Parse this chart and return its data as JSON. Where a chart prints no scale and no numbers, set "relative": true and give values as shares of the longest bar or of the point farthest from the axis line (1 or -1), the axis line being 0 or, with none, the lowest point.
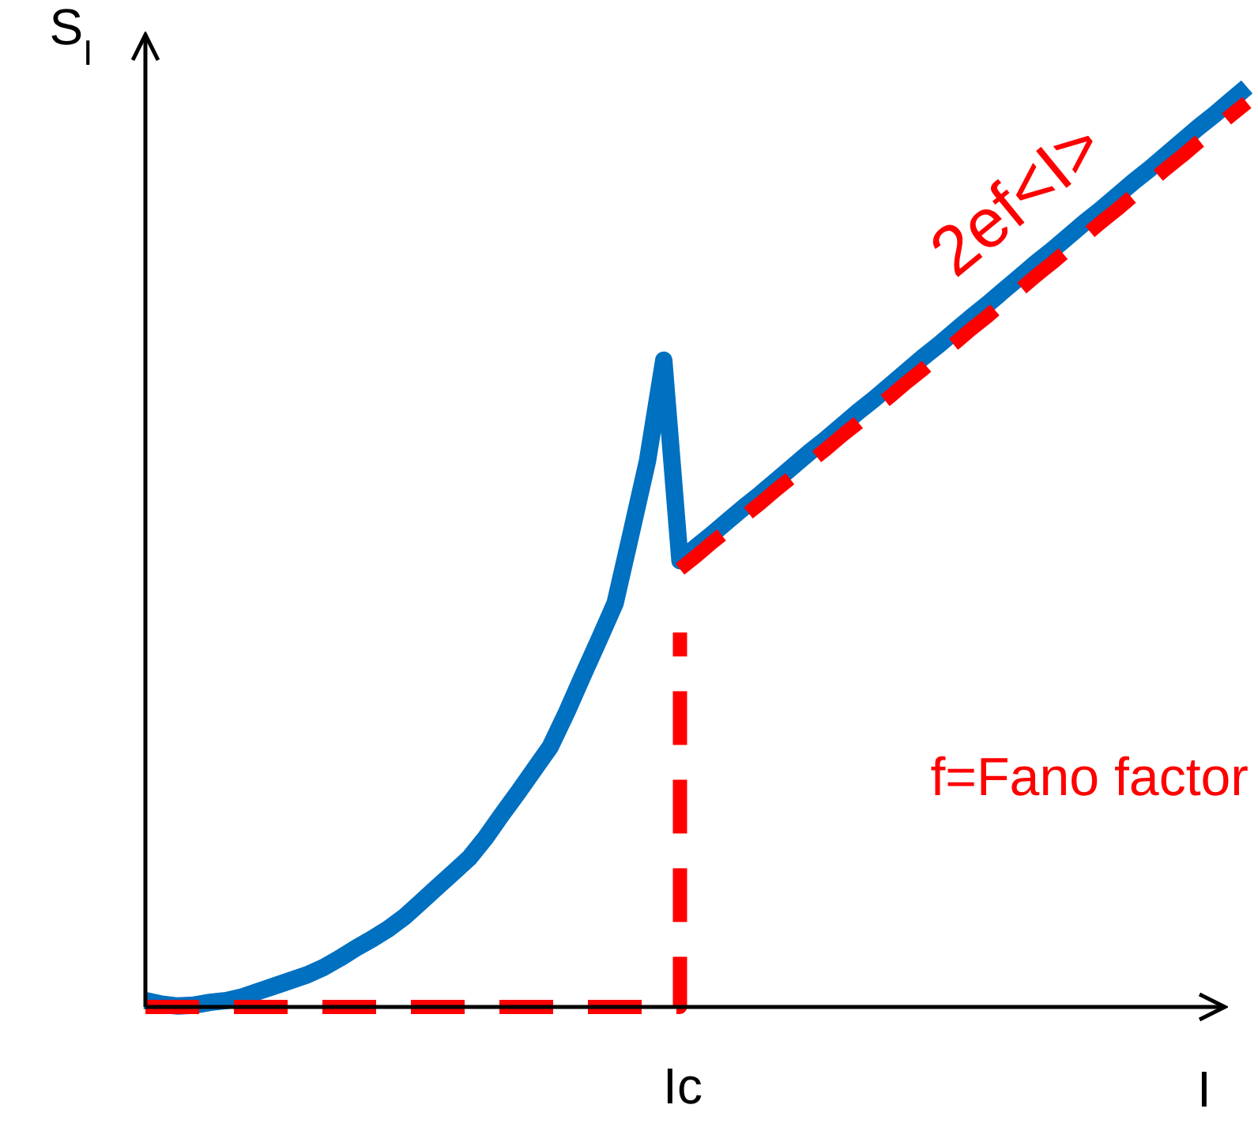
{
  "chart_data": {
    "type": "line",
    "relative": true,
    "xlabel": "I",
    "ylabel": "S$_{I}$",
    "categories": [
      null,
      null,
      null,
      null,
      null,
      null,
      null,
      null,
      null,
      null,
      null,
      null,
      null,
      null,
      null,
      null,
      null,
      null,
      null,
      null,
      null,
      null,
      null,
      null,
      null,
      null,
      null,
      null,
      null,
      null,
      null,
      null,
      null,
      null,
      null,
      null,
      null,
      null,
      null,
      null,
      null,
      null,
      null,
      null,
      null,
      null,
      null,
      null,
      null,
      null,
      null,
      null,
      null,
      null,
      null,
      null,
      null,
      null,
      null,
      null,
      null,
      null,
      null,
      null,
      null,
      null,
      null,
      null,
      null
    ],
    "marker": "none",
    "series": [
      {
        "color": "#0070c0",
        "line_style": "solid",
        "values": [
          0.007,
          0.003,
          0.001,
          0.002,
          0.005,
          0.007,
          0.011,
          0.017,
          0.023,
          0.029,
          0.035,
          0.043,
          0.053,
          0.064,
          0.074,
          0.085,
          0.098,
          0.114,
          0.13,
          0.146,
          0.162,
          0.184,
          0.209,
          0.233,
          0.258,
          0.283,
          0.32,
          0.36,
          0.399,
          0.439,
          0.516,
          0.594,
          0.703,
          0.485,
          0.5,
          0.514,
          0.529,
          0.544,
          0.558,
          0.573,
          0.588,
          0.603,
          0.617,
          0.632,
          0.647,
          0.661,
          0.676,
          0.691,
          0.706,
          0.72,
          0.735,
          0.75,
          0.764,
          0.779,
          0.794,
          0.809,
          0.823,
          0.838,
          0.853,
          0.867,
          0.882,
          0.897,
          0.911,
          0.926,
          0.941,
          0.956,
          0.97,
          0.985,
          1.0
        ]
      },
      {
        "type": "step",
        "color": "#ff0000",
        "line_style": "dashed",
        "values": [
          0,
          0,
          0,
          0,
          0,
          0,
          0,
          0,
          0,
          0,
          0,
          0,
          0,
          0,
          0,
          0,
          0,
          0,
          0,
          0,
          0,
          0,
          0,
          0,
          0,
          0,
          0,
          0,
          0,
          0,
          0,
          0,
          0,
          0.407,
          null,
          null,
          null,
          null,
          null,
          null,
          null,
          null,
          null,
          null,
          null,
          null,
          null,
          null,
          null,
          null,
          null,
          null,
          null,
          null,
          null,
          null,
          null,
          null,
          null,
          null,
          null,
          null,
          null,
          null,
          null,
          null,
          null,
          null,
          null
        ]
      },
      {
        "name": "2ef<I>",
        "color": "#ff0000",
        "line_style": "dashed",
        "values": [
          null,
          null,
          null,
          null,
          null,
          null,
          null,
          null,
          null,
          null,
          null,
          null,
          null,
          null,
          null,
          null,
          null,
          null,
          null,
          null,
          null,
          null,
          null,
          null,
          null,
          null,
          null,
          null,
          null,
          null,
          null,
          null,
          null,
          0.476,
          0.49,
          0.505,
          0.519,
          0.534,
          0.548,
          0.563,
          0.577,
          0.592,
          0.606,
          0.621,
          0.635,
          0.65,
          0.664,
          0.679,
          0.693,
          0.708,
          0.722,
          0.737,
          0.751,
          0.766,
          0.78,
          0.795,
          0.809,
          0.824,
          0.838,
          0.853,
          0.867,
          0.882,
          0.896,
          0.911,
          0.925,
          0.94,
          0.954,
          0.969,
          0.983
        ]
      }
    ],
    "annotations": [
      "Ic",
      "f=Fano factor"
    ]
  }
}
